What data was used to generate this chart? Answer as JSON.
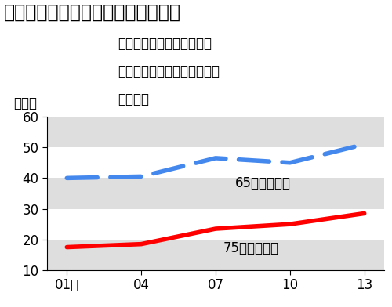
{
  "title": "「老老介護」の割合は高まっている",
  "subtitle_line1": "自宅で介護を受けている人",
  "subtitle_line2": "と、同居して介護している家",
  "subtitle_line3": "族の場合",
  "ylabel": "（％）",
  "x_labels": [
    "01年",
    "04",
    "07",
    "10",
    "13"
  ],
  "x_values": [
    2001,
    2004,
    2007,
    2010,
    2013
  ],
  "blue_data": [
    40.0,
    40.5,
    46.5,
    45.0,
    51.0
  ],
  "red_data": [
    17.5,
    18.5,
    23.5,
    25.0,
    28.5
  ],
  "blue_label": "65歳以上同士",
  "red_label": "75歳以上同士",
  "blue_color": "#4488ee",
  "red_color": "#ff0000",
  "bg_color": "#ffffff",
  "band_color": "#dedede",
  "ylim": [
    10,
    60
  ],
  "yticks": [
    10,
    20,
    30,
    40,
    50,
    60
  ],
  "title_fontsize": 17,
  "subtitle_fontsize": 12,
  "label_fontsize": 12,
  "axis_fontsize": 12
}
